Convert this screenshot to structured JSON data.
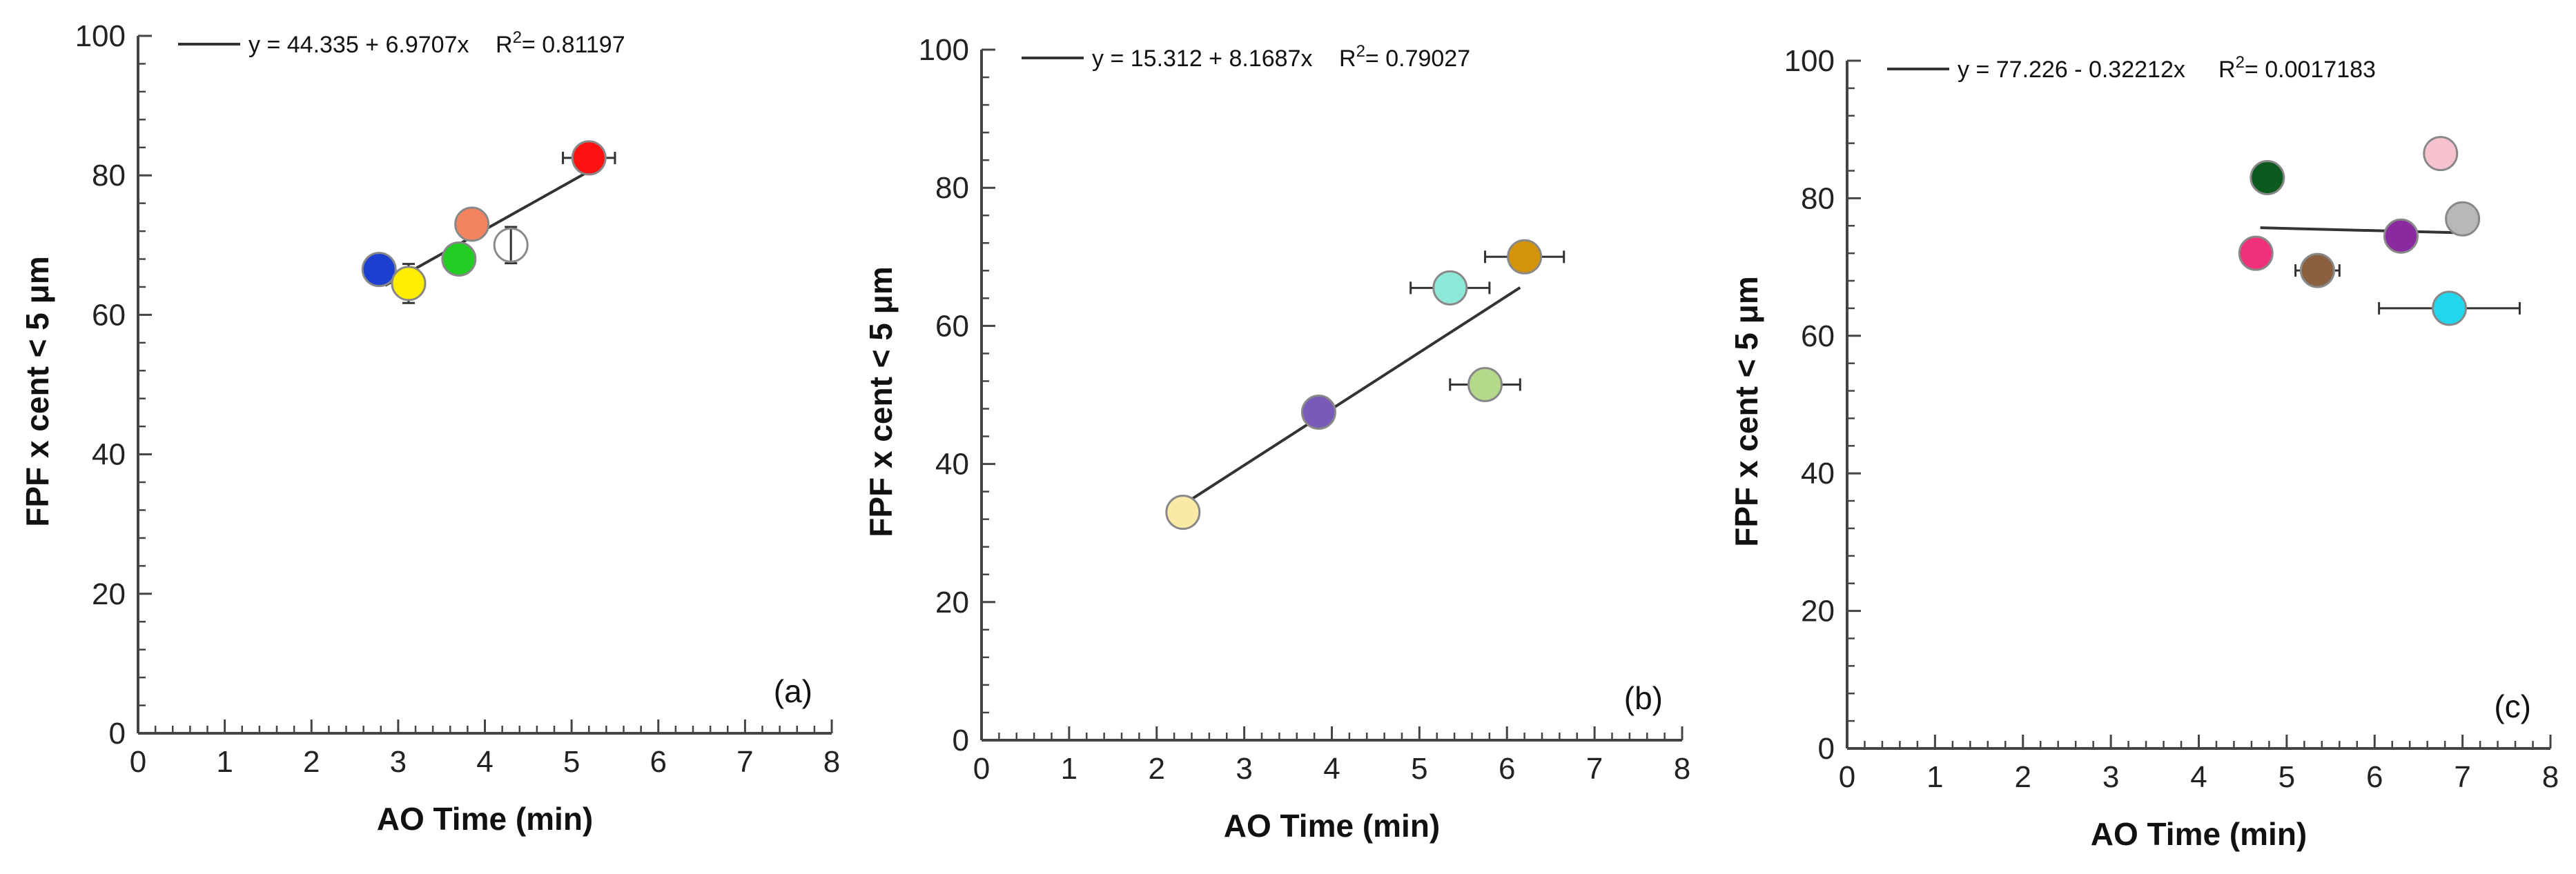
{
  "chart_data": [
    {
      "type": "scatter",
      "panel_label": "(a)",
      "xlabel": "AO Time (min)",
      "ylabel": "FPF x cent < 5 μm",
      "xlim": [
        0,
        8
      ],
      "ylim": [
        0,
        100
      ],
      "xticks": [
        "0",
        "1",
        "2",
        "3",
        "4",
        "5",
        "6",
        "7",
        "8"
      ],
      "yticks": [
        "0",
        "20",
        "40",
        "60",
        "80",
        "100"
      ],
      "fit": {
        "equation": "y = 44.335 + 6.9707x",
        "r2_label": "R",
        "r2_sup": "2",
        "r2_value": "= 0.81197",
        "intercept": 44.335,
        "slope": 6.9707,
        "x_range": [
          2.85,
          5.2
        ]
      },
      "points": [
        {
          "x": 2.78,
          "y": 66.5,
          "color": "#1a3fd1",
          "xerr": 0.0,
          "yerr": 0.0
        },
        {
          "x": 3.12,
          "y": 64.5,
          "color": "#ffee00",
          "xerr": 0.0,
          "yerr": 2.8
        },
        {
          "x": 3.7,
          "y": 68.0,
          "color": "#22cc22",
          "xerr": 0.0,
          "yerr": 0.0
        },
        {
          "x": 3.85,
          "y": 73.0,
          "color": "#f4845f",
          "xerr": 0.0,
          "yerr": 0.0
        },
        {
          "x": 4.3,
          "y": 70.0,
          "color": "#ffffff",
          "xerr": 0.0,
          "yerr": 2.6
        },
        {
          "x": 5.2,
          "y": 82.5,
          "color": "#ff1111",
          "xerr": 0.3,
          "yerr": 0.0
        }
      ]
    },
    {
      "type": "scatter",
      "panel_label": "(b)",
      "xlabel": "AO Time (min)",
      "ylabel": "FPF x cent < 5 μm",
      "xlim": [
        0,
        8
      ],
      "ylim": [
        0,
        100
      ],
      "xticks": [
        "0",
        "1",
        "2",
        "3",
        "4",
        "5",
        "6",
        "7",
        "8"
      ],
      "yticks": [
        "0",
        "20",
        "40",
        "60",
        "80",
        "100"
      ],
      "fit": {
        "equation": "y = 15.312 + 8.1687x",
        "r2_label": "R",
        "r2_sup": "2",
        "r2_value": "= 0.79027",
        "intercept": 15.312,
        "slope": 8.1687,
        "x_range": [
          2.3,
          6.15
        ]
      },
      "points": [
        {
          "x": 2.3,
          "y": 33.0,
          "color": "#fbe9a6",
          "xerr": 0.0,
          "yerr": 0.0
        },
        {
          "x": 3.85,
          "y": 47.5,
          "color": "#7a5ab8",
          "xerr": 0.0,
          "yerr": 0.0
        },
        {
          "x": 5.35,
          "y": 65.5,
          "color": "#8ee8d8",
          "xerr": 0.45,
          "yerr": 0.0
        },
        {
          "x": 5.75,
          "y": 51.5,
          "color": "#b5d98a",
          "xerr": 0.4,
          "yerr": 0.0
        },
        {
          "x": 6.2,
          "y": 70.0,
          "color": "#d4940a",
          "xerr": 0.45,
          "yerr": 0.0
        }
      ]
    },
    {
      "type": "scatter",
      "panel_label": "(c)",
      "xlabel": "AO Time (min)",
      "ylabel": "FPF x cent < 5 μm",
      "xlim": [
        0,
        8
      ],
      "ylim": [
        0,
        100
      ],
      "xticks": [
        "0",
        "1",
        "2",
        "3",
        "4",
        "5",
        "6",
        "7",
        "8"
      ],
      "yticks": [
        "0",
        "20",
        "40",
        "60",
        "80",
        "100"
      ],
      "fit": {
        "equation": "y = 77.226 - 0.32212x",
        "r2_label": "R",
        "r2_sup": "2",
        "r2_value": "= 0.0017183",
        "intercept": 77.226,
        "slope": -0.32212,
        "x_range": [
          4.7,
          7.0
        ]
      },
      "points": [
        {
          "x": 4.65,
          "y": 72.0,
          "color": "#f0307a",
          "xerr": 0.0,
          "yerr": 0.0
        },
        {
          "x": 4.78,
          "y": 83.0,
          "color": "#0d5a1f",
          "xerr": 0.0,
          "yerr": 0.0
        },
        {
          "x": 5.35,
          "y": 69.5,
          "color": "#8a6040",
          "xerr": 0.25,
          "yerr": 0.0
        },
        {
          "x": 6.3,
          "y": 74.5,
          "color": "#8b2aa0",
          "xerr": 0.0,
          "yerr": 0.0
        },
        {
          "x": 6.75,
          "y": 86.5,
          "color": "#f7c2d0",
          "xerr": 0.0,
          "yerr": 0.0
        },
        {
          "x": 6.85,
          "y": 64.0,
          "color": "#22d6ee",
          "xerr": 0.8,
          "yerr": 0.0
        },
        {
          "x": 7.0,
          "y": 77.0,
          "color": "#b8b8b8",
          "xerr": 0.0,
          "yerr": 0.0
        }
      ]
    }
  ]
}
